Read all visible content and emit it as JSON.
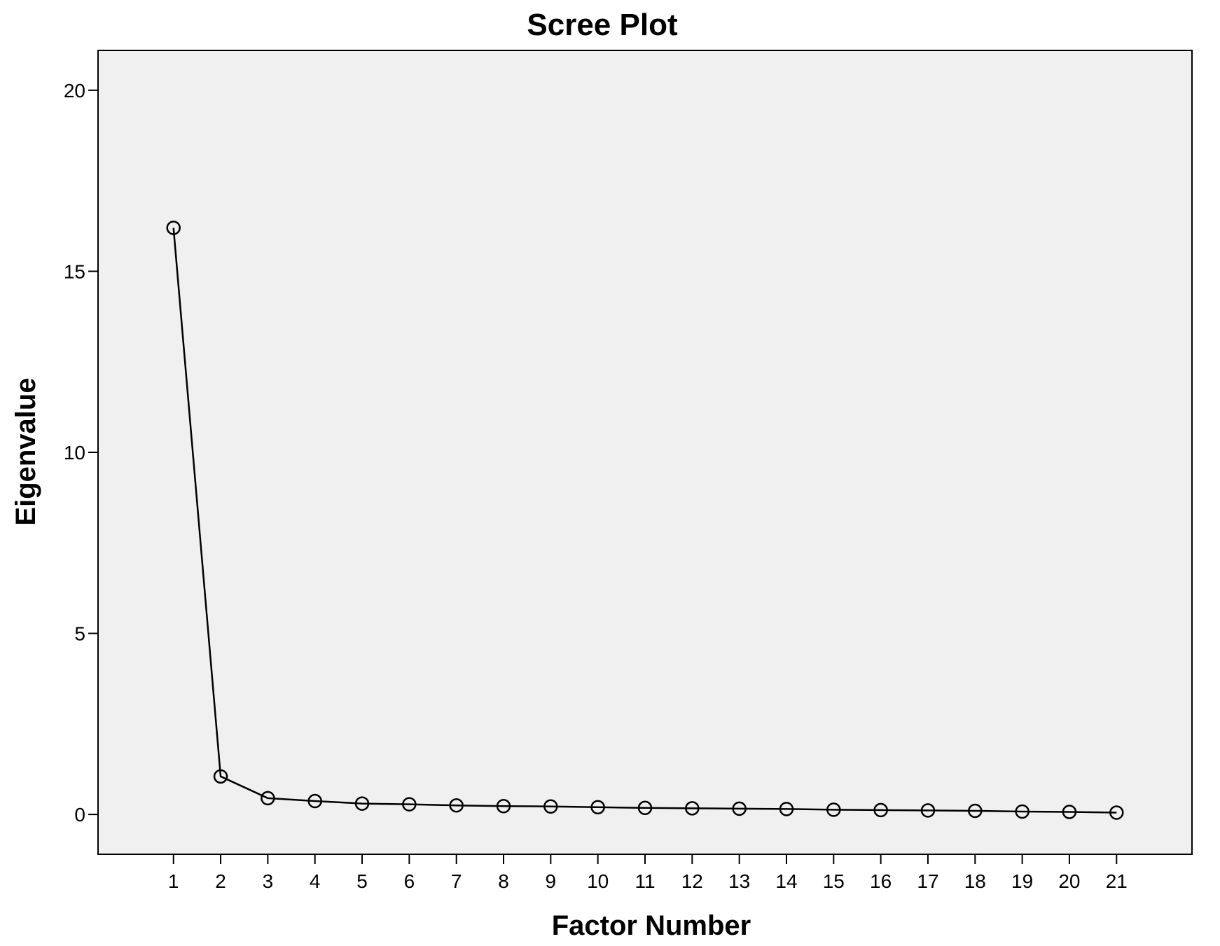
{
  "chart_data": {
    "type": "line",
    "title": "Scree Plot",
    "xlabel": "Factor Number",
    "ylabel": "Eigenvalue",
    "x": [
      1,
      2,
      3,
      4,
      5,
      6,
      7,
      8,
      9,
      10,
      11,
      12,
      13,
      14,
      15,
      16,
      17,
      18,
      19,
      20,
      21
    ],
    "series": [
      {
        "values": [
          16.2,
          1.05,
          0.45,
          0.37,
          0.3,
          0.28,
          0.25,
          0.23,
          0.22,
          0.2,
          0.18,
          0.17,
          0.16,
          0.15,
          0.13,
          0.12,
          0.11,
          0.1,
          0.08,
          0.07,
          0.05
        ]
      }
    ],
    "x_ticks": [
      "1",
      "2",
      "3",
      "4",
      "5",
      "6",
      "7",
      "8",
      "9",
      "10",
      "11",
      "12",
      "13",
      "14",
      "15",
      "16",
      "17",
      "18",
      "19",
      "20",
      "21"
    ],
    "y_ticks": [
      "0",
      "5",
      "10",
      "15",
      "20"
    ],
    "xlim": [
      -0.6,
      22.6
    ],
    "ylim": [
      -1.1,
      21.1
    ],
    "grid": false,
    "plot_background": "#f0f0f0",
    "line_color": "#000000",
    "marker": "open-circle"
  }
}
